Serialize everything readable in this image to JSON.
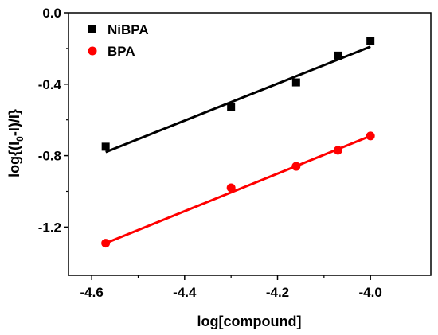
{
  "chart_data": {
    "type": "scatter",
    "xlabel": "log[compound]",
    "ylabel": "log{(I0-I)/I}",
    "ylabel_parts": [
      "log{(I",
      "0",
      "-I)/I}"
    ],
    "xlim": [
      -4.65,
      -3.87
    ],
    "ylim": [
      -1.47,
      0.0
    ],
    "xticks": [
      -4.6,
      -4.4,
      -4.2,
      -4.0
    ],
    "xtick_labels": [
      "-4.6",
      "-4.4",
      "-4.2",
      "-4.0"
    ],
    "yticks": [
      0.0,
      -0.4,
      -0.8,
      -1.2
    ],
    "ytick_labels": [
      "0.0",
      "-0.4",
      "-0.8",
      "-1.2"
    ],
    "grid": false,
    "legend_position": "top-left",
    "series": [
      {
        "name": "NiBPA",
        "marker": "square",
        "color": "#000000",
        "x": [
          -4.57,
          -4.3,
          -4.16,
          -4.07,
          -4.0
        ],
        "y": [
          -0.75,
          -0.53,
          -0.39,
          -0.24,
          -0.16
        ],
        "fit": {
          "x": [
            -4.57,
            -4.0
          ],
          "y": [
            -0.78,
            -0.19
          ]
        }
      },
      {
        "name": "BPA",
        "marker": "circle",
        "color": "#ff0000",
        "x": [
          -4.57,
          -4.3,
          -4.16,
          -4.07,
          -4.0
        ],
        "y": [
          -1.29,
          -0.98,
          -0.86,
          -0.77,
          -0.69
        ],
        "fit": {
          "x": [
            -4.57,
            -4.0
          ],
          "y": [
            -1.29,
            -0.69
          ]
        }
      }
    ]
  }
}
